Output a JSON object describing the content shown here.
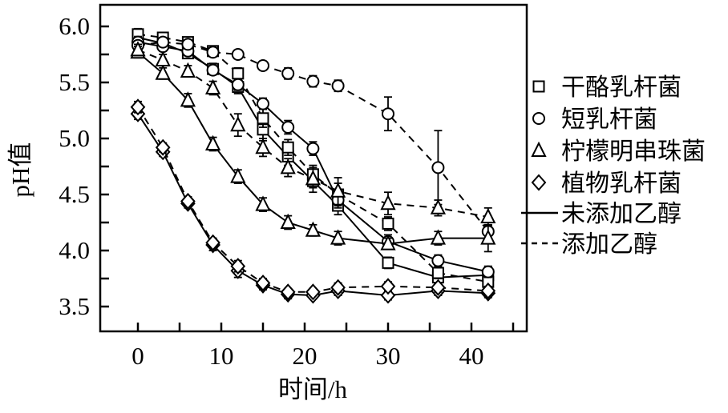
{
  "figure": {
    "background": "#ffffff",
    "ink_color": "#000000",
    "marker_fill": "#ffffff"
  },
  "chart_data": {
    "type": "line",
    "title": "",
    "xlabel": "时间/h",
    "ylabel": "pH值",
    "grid": false,
    "legend_position": "right-outside",
    "x": [
      0,
      3,
      6,
      9,
      12,
      15,
      18,
      21,
      24,
      30,
      36,
      42
    ],
    "xlim": [
      -4.5,
      46.6
    ],
    "ylim": [
      3.28,
      6.19
    ],
    "x_major_ticks": [
      0,
      10,
      20,
      30,
      40
    ],
    "x_major_tick_labels": [
      "0",
      "10",
      "20",
      "30",
      "40"
    ],
    "x_minor_tick_step": 5,
    "x_tick_max": 45,
    "y_major_ticks": [
      6.0,
      5.5,
      5.0,
      4.5,
      4.0,
      3.5
    ],
    "y_major_tick_labels": [
      "6.0",
      "5.5",
      "5.0",
      "4.5",
      "4.0",
      "3.5"
    ],
    "y_minor_tick_step": 0.25,
    "series": [
      {
        "key": "casei-no-ethanol",
        "name": "干酪乳杆菌（未添加乙醇）",
        "species": "干酪乳杆菌",
        "condition": "未添加乙醇",
        "marker": "square",
        "line": "solid",
        "values": [
          5.9,
          5.85,
          5.76,
          5.62,
          5.46,
          5.08,
          4.84,
          4.62,
          4.4,
          3.89,
          3.76,
          3.78
        ],
        "errors": [
          0.06,
          0.04,
          0.04,
          0.05,
          0.06,
          0.1,
          0.08,
          0.06,
          0.08,
          0.05,
          0.04,
          0.05
        ]
      },
      {
        "key": "casei-ethanol",
        "name": "干酪乳杆菌（添加乙醇）",
        "species": "干酪乳杆菌",
        "condition": "添加乙醇",
        "marker": "square",
        "line": "dashed",
        "values": [
          5.93,
          5.9,
          5.86,
          5.78,
          5.58,
          5.18,
          4.92,
          4.68,
          4.5,
          4.24,
          3.8,
          3.72
        ],
        "errors": [
          0.05,
          0.04,
          0.04,
          0.04,
          0.05,
          0.08,
          0.07,
          0.06,
          0.1,
          0.06,
          0.05,
          0.04
        ]
      },
      {
        "key": "brevis-no-ethanol",
        "name": "短乳杆菌（未添加乙醇）",
        "species": "短乳杆菌",
        "condition": "未添加乙醇",
        "marker": "circle",
        "line": "solid",
        "values": [
          5.86,
          5.82,
          5.78,
          5.61,
          5.48,
          5.31,
          5.1,
          4.91,
          4.45,
          4.08,
          3.91,
          3.81
        ],
        "errors": [
          0.05,
          0.04,
          0.04,
          0.04,
          0.05,
          0.05,
          0.06,
          0.06,
          0.07,
          0.06,
          0.05,
          0.05
        ]
      },
      {
        "key": "brevis-ethanol",
        "name": "短乳杆菌（添加乙醇）",
        "species": "短乳杆菌",
        "condition": "添加乙醇",
        "marker": "circle",
        "line": "dashed",
        "values": [
          5.83,
          5.86,
          5.84,
          5.77,
          5.75,
          5.65,
          5.58,
          5.51,
          5.47,
          5.22,
          4.74,
          4.17
        ],
        "errors": [
          0.04,
          0.04,
          0.04,
          0.04,
          0.04,
          0.04,
          0.05,
          0.05,
          0.05,
          0.15,
          0.33,
          0.06
        ]
      },
      {
        "key": "citreum-no-ethanol",
        "name": "柠檬明串珠菌（未添加乙醇）",
        "species": "柠檬明串珠菌",
        "condition": "未添加乙醇",
        "marker": "triangle",
        "line": "solid",
        "values": [
          5.77,
          5.58,
          5.34,
          4.95,
          4.66,
          4.41,
          4.25,
          4.18,
          4.11,
          4.06,
          4.11,
          4.11
        ],
        "errors": [
          0.05,
          0.05,
          0.06,
          0.06,
          0.06,
          0.06,
          0.06,
          0.05,
          0.06,
          0.05,
          0.06,
          0.12
        ]
      },
      {
        "key": "citreum-ethanol",
        "name": "柠檬明串珠菌（添加乙醇）",
        "species": "柠檬明串珠菌",
        "condition": "添加乙醇",
        "marker": "triangle",
        "line": "dashed",
        "values": [
          5.79,
          5.7,
          5.6,
          5.45,
          5.12,
          4.92,
          4.74,
          4.64,
          4.53,
          4.42,
          4.38,
          4.3
        ],
        "errors": [
          0.05,
          0.05,
          0.05,
          0.06,
          0.1,
          0.08,
          0.08,
          0.12,
          0.12,
          0.1,
          0.07,
          0.08
        ]
      },
      {
        "key": "plantarum-no-ethanol",
        "name": "植物乳杆菌（未添加乙醇）",
        "species": "植物乳杆菌",
        "condition": "未添加乙醇",
        "marker": "diamond",
        "line": "solid",
        "values": [
          5.22,
          4.88,
          4.42,
          4.05,
          3.82,
          3.69,
          3.61,
          3.6,
          3.64,
          3.6,
          3.64,
          3.62
        ],
        "errors": [
          0.05,
          0.04,
          0.04,
          0.05,
          0.06,
          0.04,
          0.04,
          0.03,
          0.04,
          0.04,
          0.04,
          0.04
        ]
      },
      {
        "key": "plantarum-ethanol",
        "name": "植物乳杆菌（添加乙醇）",
        "species": "植物乳杆菌",
        "condition": "添加乙醇",
        "marker": "diamond",
        "line": "dashed",
        "values": [
          5.28,
          4.92,
          4.44,
          4.07,
          3.86,
          3.71,
          3.63,
          3.63,
          3.67,
          3.68,
          3.67,
          3.64
        ],
        "errors": [
          0.05,
          0.04,
          0.04,
          0.04,
          0.05,
          0.04,
          0.03,
          0.03,
          0.04,
          0.04,
          0.04,
          0.04
        ]
      }
    ],
    "legend": {
      "marker_entries": [
        {
          "marker": "square",
          "label": "干酪乳杆菌"
        },
        {
          "marker": "circle",
          "label": "短乳杆菌"
        },
        {
          "marker": "triangle",
          "label": "柠檬明串珠菌"
        },
        {
          "marker": "diamond",
          "label": "植物乳杆菌"
        }
      ],
      "line_entries": [
        {
          "line": "solid",
          "label": "未添加乙醇"
        },
        {
          "line": "dashed",
          "label": "添加乙醇"
        }
      ]
    }
  }
}
